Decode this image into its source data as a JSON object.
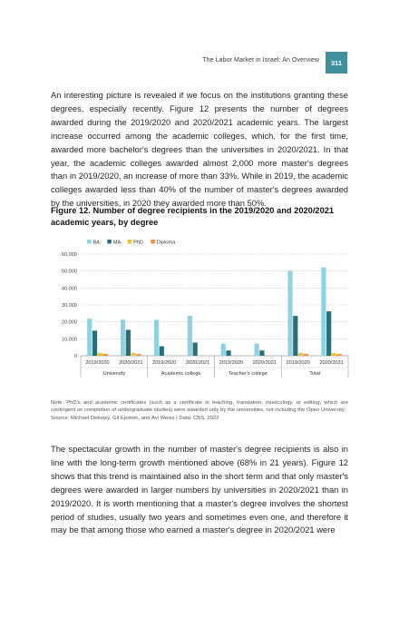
{
  "running_head": {
    "title": "The Labor Market in Israel: An Overview",
    "page_number": "311"
  },
  "body": {
    "para1": "An interesting picture is revealed if we focus on the institutions granting these degrees, especially recently. Figure 12 presents the number of degrees awarded during the 2019/2020 and 2020/2021 academic years. The largest increase occurred among the academic colleges, which, for the first time, awarded more bachelor's degrees than the universities in 2020/2021. In that year, the academic colleges awarded almost 2,000 more master's degrees than in 2019/2020, an increase of more than 33%. While in 2019, the academic colleges awarded less than 40% of the number of master's degrees awarded by the universities, in 2020 they awarded more than 50%.",
    "para2": "The spectacular growth in the number of master's degree recipients is also in line with the long-term growth mentioned above (68% in 21 years). Figure 12 shows that this trend is maintained also in the short term and that only master's degrees were awarded in larger numbers by universities in 2020/2021 than in 2019/2020. It is worth mentioning that a master's degree involves the shortest period of studies, usually two years and sometimes even one, and therefore it may be that among those who earned a master's degree in 2020/2021 were"
  },
  "figure": {
    "title": "Figure 12. Number of degree recipients in the 2019/2020 and 2020/2021 academic years, by degree",
    "note": "Note: PhD's and academic certificates (such as a certificate in teaching, translation, musicology, or editing, which are contingent on completion of undergraduate studies) were awarded only by the universities, not including the Open University.",
    "source": "Source: Michael Debowy, Gil Epstein, and Avi Weiss | Data: CBS, 2022"
  },
  "chart_data": {
    "type": "bar",
    "title": "",
    "xlabel": "",
    "ylabel": "",
    "ylim": [
      0,
      60000
    ],
    "yticks": [
      "0",
      "10,000",
      "20,000",
      "30,000",
      "40,000",
      "50,000",
      "60,000"
    ],
    "ytick_values": [
      0,
      10000,
      20000,
      30000,
      40000,
      50000,
      60000
    ],
    "grid": true,
    "legend_position": "top-left",
    "groups": [
      "University",
      "Academic college",
      "Teacher's college",
      "Total"
    ],
    "categories": [
      "2019/2020",
      "2020/2021",
      "2019/2020",
      "2020/2021",
      "2019/2020",
      "2020/2021",
      "2019/2020",
      "2020/2021"
    ],
    "series": [
      {
        "name": "BA",
        "color": "#8fd3e3",
        "values": [
          21900,
          21300,
          21200,
          23600,
          7100,
          7200,
          50200,
          52100
        ]
      },
      {
        "name": "MA",
        "color": "#2c6e78",
        "values": [
          14800,
          15300,
          5600,
          7800,
          3100,
          3100,
          23500,
          26200
        ]
      },
      {
        "name": "PhD",
        "color": "#f2c12e",
        "values": [
          1600,
          1600,
          0,
          0,
          0,
          0,
          1600,
          1600
        ]
      },
      {
        "name": "Diploma",
        "color": "#f08c4a",
        "values": [
          1100,
          1000,
          0,
          0,
          0,
          0,
          1100,
          1000
        ]
      }
    ]
  }
}
